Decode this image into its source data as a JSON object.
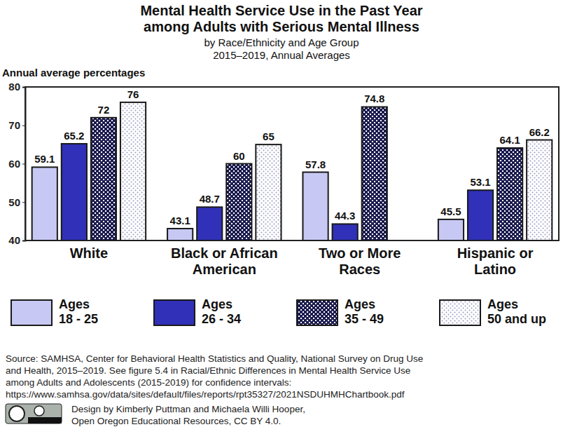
{
  "chart_data": {
    "type": "bar",
    "title": [
      "Mental Health Service Use in the Past Year",
      "among Adults with Serious Mental Illness"
    ],
    "subtitle": [
      "by Race/Ethnicity and Age Group",
      "2015–2019, Annual Averages"
    ],
    "y_label": "Annual average percentages",
    "categories": [
      "White",
      "Black or African American",
      "Two or More Races",
      "Hispanic or Latino"
    ],
    "series": [
      {
        "name": "Ages 18 - 25",
        "color": "#c8c8f4",
        "values": [
          59.1,
          43.1,
          57.8,
          45.5
        ]
      },
      {
        "name": "Ages 26 - 34",
        "color": "#3030b8",
        "values": [
          65.2,
          48.7,
          44.3,
          53.1
        ]
      },
      {
        "name": "Ages 35 - 49",
        "color": "#1c1c50",
        "values": [
          72,
          60,
          74.8,
          64.1
        ]
      },
      {
        "name": "Ages 50 and up",
        "color": "#ffffff",
        "values": [
          76,
          65,
          null,
          66.2
        ]
      }
    ],
    "ylim": [
      40,
      80
    ],
    "yticks": [
      40,
      50,
      60,
      70,
      80
    ],
    "grid": false,
    "legend": "bottom",
    "data_labels": true,
    "annotations": [
      "Source: SAMHSA, Center for Behavioral Health Statistics and Quality, National Survey on Drug Use",
      "and Health, 2015–2019. See figure 5.4 in Racial/Ethnic Differences in Mental Health Service Use",
      "among Adults and Adolescents (2015-2019) for confidence intervals:",
      "https://www.samhsa.gov/data/sites/default/files/reports/rpt35327/2021NSDUHMHChartbook.pdf"
    ],
    "credit": [
      "Design by Kimberly Puttman and Michaela Willi Hooper,",
      "Open Oregon Educational Resources, CC BY 4.0."
    ]
  }
}
